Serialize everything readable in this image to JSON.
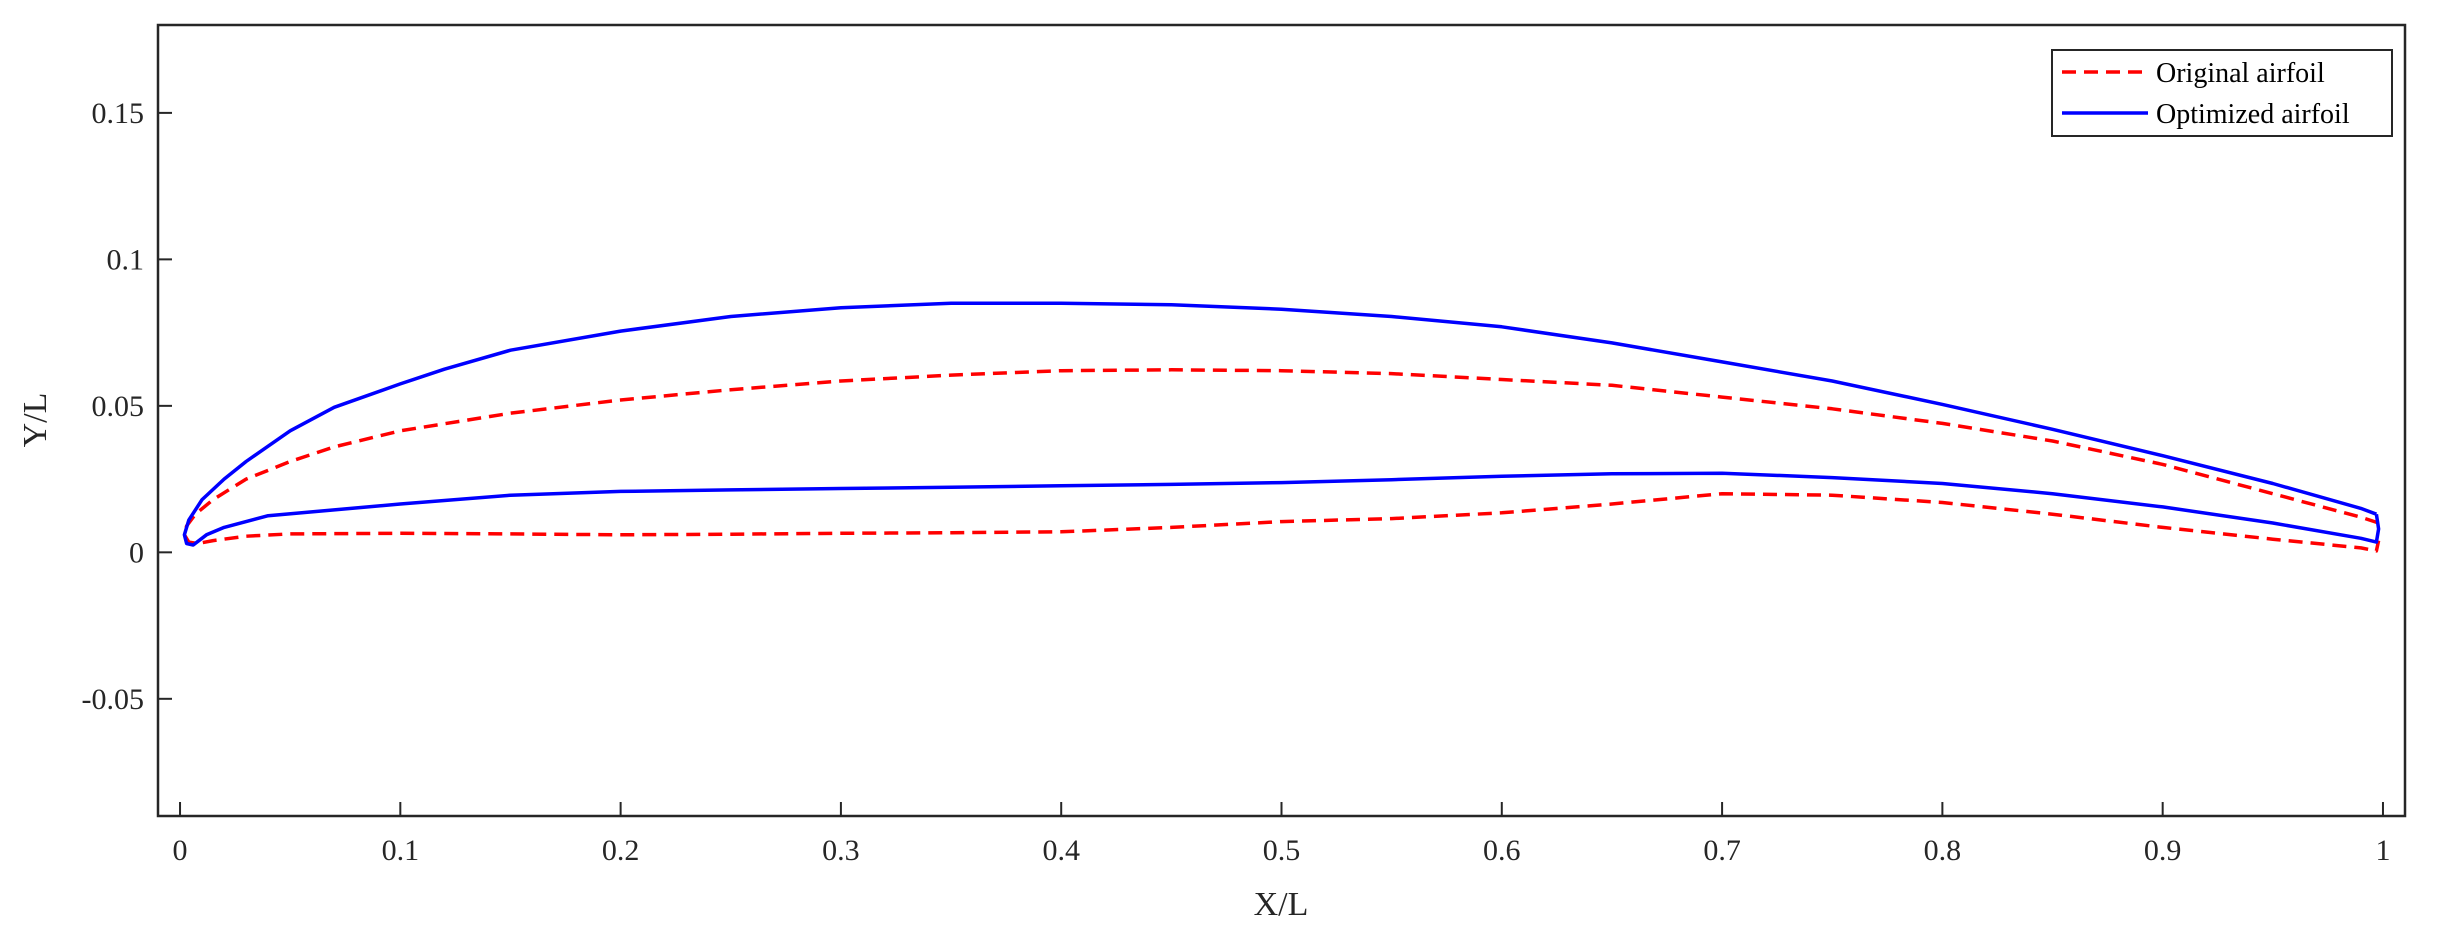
{
  "chart_data": {
    "type": "line",
    "title": "",
    "xlabel": "X/L",
    "ylabel": "Y/L",
    "xlim": [
      -0.01,
      1.01
    ],
    "ylim": [
      -0.09,
      0.18
    ],
    "x_ticks": [
      0,
      0.1,
      0.2,
      0.3,
      0.4,
      0.5,
      0.6,
      0.7,
      0.8,
      0.9,
      1
    ],
    "x_tick_labels": [
      "0",
      "0.1",
      "0.2",
      "0.3",
      "0.4",
      "0.5",
      "0.6",
      "0.7",
      "0.8",
      "0.9",
      "1"
    ],
    "y_ticks": [
      -0.05,
      0,
      0.05,
      0.1,
      0.15
    ],
    "y_tick_labels": [
      "-0.05",
      "0",
      "0.05",
      "0.1",
      "0.15"
    ],
    "grid": false,
    "legend_position": "top-right",
    "series": [
      {
        "name": "Original airfoil",
        "color": "#ff0000",
        "style": "dashed",
        "x": [
          0.998,
          0.99,
          0.95,
          0.9,
          0.85,
          0.8,
          0.75,
          0.7,
          0.65,
          0.6,
          0.55,
          0.5,
          0.45,
          0.4,
          0.35,
          0.3,
          0.25,
          0.2,
          0.15,
          0.1,
          0.07,
          0.05,
          0.03,
          0.015,
          0.007,
          0.003,
          0.002,
          0.004,
          0.008,
          0.015,
          0.03,
          0.05,
          0.1,
          0.15,
          0.2,
          0.25,
          0.3,
          0.35,
          0.4,
          0.45,
          0.5,
          0.55,
          0.6,
          0.65,
          0.7,
          0.75,
          0.8,
          0.85,
          0.9,
          0.95,
          0.99,
          0.997,
          0.998
        ],
        "y": [
          0.01,
          0.012,
          0.02,
          0.03,
          0.038,
          0.044,
          0.049,
          0.053,
          0.057,
          0.059,
          0.061,
          0.062,
          0.0623,
          0.062,
          0.0605,
          0.0585,
          0.0555,
          0.052,
          0.0475,
          0.0415,
          0.036,
          0.031,
          0.025,
          0.018,
          0.013,
          0.009,
          0.006,
          0.0035,
          0.003,
          0.004,
          0.0055,
          0.0063,
          0.0065,
          0.0063,
          0.006,
          0.0062,
          0.0065,
          0.0067,
          0.007,
          0.0085,
          0.0105,
          0.0115,
          0.0135,
          0.0165,
          0.02,
          0.0195,
          0.017,
          0.013,
          0.0085,
          0.0045,
          0.0015,
          0.0005,
          0.004
        ]
      },
      {
        "name": "Optimized airfoil",
        "color": "#0000ff",
        "style": "solid",
        "x": [
          0.997,
          0.99,
          0.95,
          0.9,
          0.85,
          0.8,
          0.75,
          0.7,
          0.65,
          0.6,
          0.55,
          0.5,
          0.45,
          0.4,
          0.35,
          0.3,
          0.25,
          0.2,
          0.15,
          0.12,
          0.1,
          0.07,
          0.05,
          0.03,
          0.02,
          0.01,
          0.004,
          0.002,
          0.003,
          0.006,
          0.012,
          0.02,
          0.04,
          0.07,
          0.1,
          0.15,
          0.2,
          0.25,
          0.3,
          0.35,
          0.4,
          0.45,
          0.5,
          0.55,
          0.6,
          0.65,
          0.7,
          0.75,
          0.8,
          0.85,
          0.9,
          0.95,
          0.99,
          0.997,
          0.998,
          0.997
        ],
        "y": [
          0.013,
          0.015,
          0.0235,
          0.033,
          0.042,
          0.0505,
          0.0585,
          0.065,
          0.0715,
          0.077,
          0.0805,
          0.083,
          0.0845,
          0.085,
          0.085,
          0.0835,
          0.0805,
          0.0755,
          0.069,
          0.0625,
          0.0575,
          0.0495,
          0.0415,
          0.031,
          0.025,
          0.018,
          0.011,
          0.006,
          0.003,
          0.0025,
          0.006,
          0.0085,
          0.0125,
          0.0145,
          0.0165,
          0.0195,
          0.0208,
          0.0213,
          0.0218,
          0.0222,
          0.0227,
          0.0232,
          0.0238,
          0.0248,
          0.026,
          0.0268,
          0.027,
          0.0255,
          0.0235,
          0.02,
          0.0155,
          0.01,
          0.0048,
          0.0035,
          0.008,
          0.013
        ]
      }
    ]
  }
}
